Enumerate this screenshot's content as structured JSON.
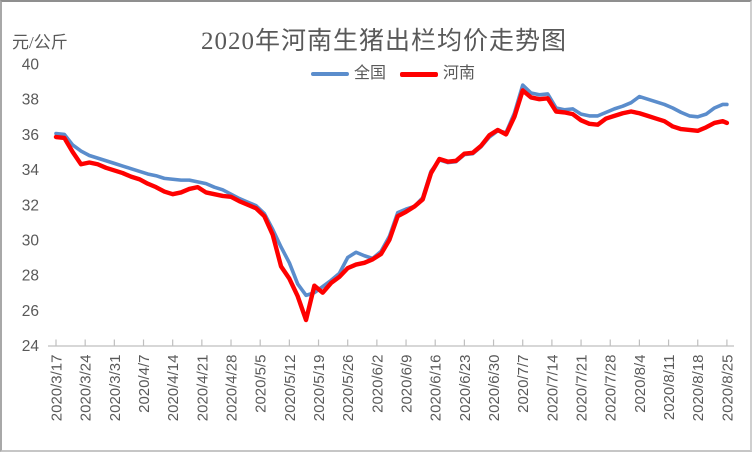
{
  "style": {
    "text_color": "#595959",
    "axis_color": "#bfbfbf",
    "background": "#ffffff",
    "national_color": "#5b8dcc",
    "henan_color": "#fe0000"
  },
  "legend": [
    {
      "label": "全国",
      "color": "#5b8dcc"
    },
    {
      "label": "河南",
      "color": "#fe0000"
    }
  ],
  "chart_data": {
    "type": "line",
    "title": "2020年河南生猪出栏均价走势图",
    "ylabel": "元/公斤",
    "xlabel": "",
    "ylim": [
      24,
      40
    ],
    "y_ticks": [
      40,
      38,
      36,
      34,
      32,
      30,
      28,
      26,
      24
    ],
    "grid": false,
    "legend_position": "top-center",
    "x_tick_labels": [
      "2020/3/17",
      "2020/3/24",
      "2020/3/31",
      "2020/4/7",
      "2020/4/14",
      "2020/4/21",
      "2020/4/28",
      "2020/5/5",
      "2020/5/12",
      "2020/5/19",
      "2020/5/26",
      "2020/6/2",
      "2020/6/9",
      "2020/6/16",
      "2020/6/23",
      "2020/6/30",
      "2020/7/7",
      "2020/7/14",
      "2020/7/21",
      "2020/7/28",
      "2020/8/4",
      "2020/8/11",
      "2020/8/18",
      "2020/8/25"
    ],
    "x": [
      "2020/3/17",
      "2020/3/19",
      "2020/3/21",
      "2020/3/23",
      "2020/3/25",
      "2020/3/27",
      "2020/3/29",
      "2020/3/31",
      "2020/4/2",
      "2020/4/4",
      "2020/4/6",
      "2020/4/8",
      "2020/4/10",
      "2020/4/12",
      "2020/4/14",
      "2020/4/16",
      "2020/4/18",
      "2020/4/20",
      "2020/4/22",
      "2020/4/24",
      "2020/4/26",
      "2020/4/28",
      "2020/4/30",
      "2020/5/2",
      "2020/5/4",
      "2020/5/6",
      "2020/5/8",
      "2020/5/10",
      "2020/5/12",
      "2020/5/14",
      "2020/5/16",
      "2020/5/18",
      "2020/5/20",
      "2020/5/22",
      "2020/5/24",
      "2020/5/26",
      "2020/5/28",
      "2020/5/30",
      "2020/6/1",
      "2020/6/3",
      "2020/6/5",
      "2020/6/7",
      "2020/6/9",
      "2020/6/11",
      "2020/6/13",
      "2020/6/15",
      "2020/6/17",
      "2020/6/19",
      "2020/6/21",
      "2020/6/23",
      "2020/6/25",
      "2020/6/27",
      "2020/6/29",
      "2020/7/1",
      "2020/7/3",
      "2020/7/5",
      "2020/7/7",
      "2020/7/9",
      "2020/7/11",
      "2020/7/13",
      "2020/7/15",
      "2020/7/17",
      "2020/7/19",
      "2020/7/21",
      "2020/7/23",
      "2020/7/25",
      "2020/7/27",
      "2020/7/29",
      "2020/7/31",
      "2020/8/2",
      "2020/8/4",
      "2020/8/6",
      "2020/8/8",
      "2020/8/10",
      "2020/8/12",
      "2020/8/14",
      "2020/8/16",
      "2020/8/18",
      "2020/8/20",
      "2020/8/22",
      "2020/8/24",
      "2020/8/25"
    ],
    "series": [
      {
        "name": "全国",
        "color": "#5b8dcc",
        "values": [
          36.05,
          36.0,
          35.4,
          35.05,
          34.8,
          34.65,
          34.5,
          34.35,
          34.2,
          34.05,
          33.9,
          33.75,
          33.65,
          33.5,
          33.45,
          33.4,
          33.4,
          33.3,
          33.2,
          33.0,
          32.85,
          32.6,
          32.35,
          32.15,
          31.95,
          31.5,
          30.6,
          29.6,
          28.7,
          27.5,
          26.85,
          27.0,
          27.35,
          27.7,
          28.1,
          29.0,
          29.3,
          29.1,
          28.95,
          29.35,
          30.2,
          31.55,
          31.75,
          31.9,
          32.4,
          33.9,
          34.55,
          34.4,
          34.45,
          34.85,
          34.9,
          35.3,
          35.85,
          36.2,
          36.1,
          37.2,
          38.8,
          38.35,
          38.25,
          38.3,
          37.5,
          37.4,
          37.45,
          37.15,
          37.05,
          37.05,
          37.25,
          37.45,
          37.6,
          37.8,
          38.15,
          38.0,
          37.85,
          37.7,
          37.5,
          37.25,
          37.05,
          37.0,
          37.15,
          37.5,
          37.7,
          37.7
        ]
      },
      {
        "name": "河南",
        "color": "#fe0000",
        "values": [
          35.85,
          35.8,
          35.0,
          34.3,
          34.4,
          34.3,
          34.1,
          33.95,
          33.8,
          33.6,
          33.45,
          33.2,
          33.0,
          32.75,
          32.6,
          32.7,
          32.9,
          33.0,
          32.7,
          32.6,
          32.5,
          32.45,
          32.2,
          32.0,
          31.8,
          31.35,
          30.3,
          28.5,
          27.8,
          26.8,
          25.45,
          27.4,
          27.0,
          27.55,
          27.9,
          28.4,
          28.6,
          28.7,
          28.9,
          29.2,
          30.0,
          31.35,
          31.6,
          31.9,
          32.3,
          33.8,
          34.6,
          34.45,
          34.5,
          34.9,
          34.95,
          35.35,
          35.95,
          36.25,
          36.0,
          37.0,
          38.5,
          38.1,
          38.0,
          38.05,
          37.3,
          37.25,
          37.15,
          36.8,
          36.6,
          36.55,
          36.9,
          37.05,
          37.2,
          37.3,
          37.2,
          37.05,
          36.9,
          36.75,
          36.45,
          36.3,
          36.25,
          36.2,
          36.4,
          36.65,
          36.75,
          36.65
        ]
      }
    ]
  }
}
